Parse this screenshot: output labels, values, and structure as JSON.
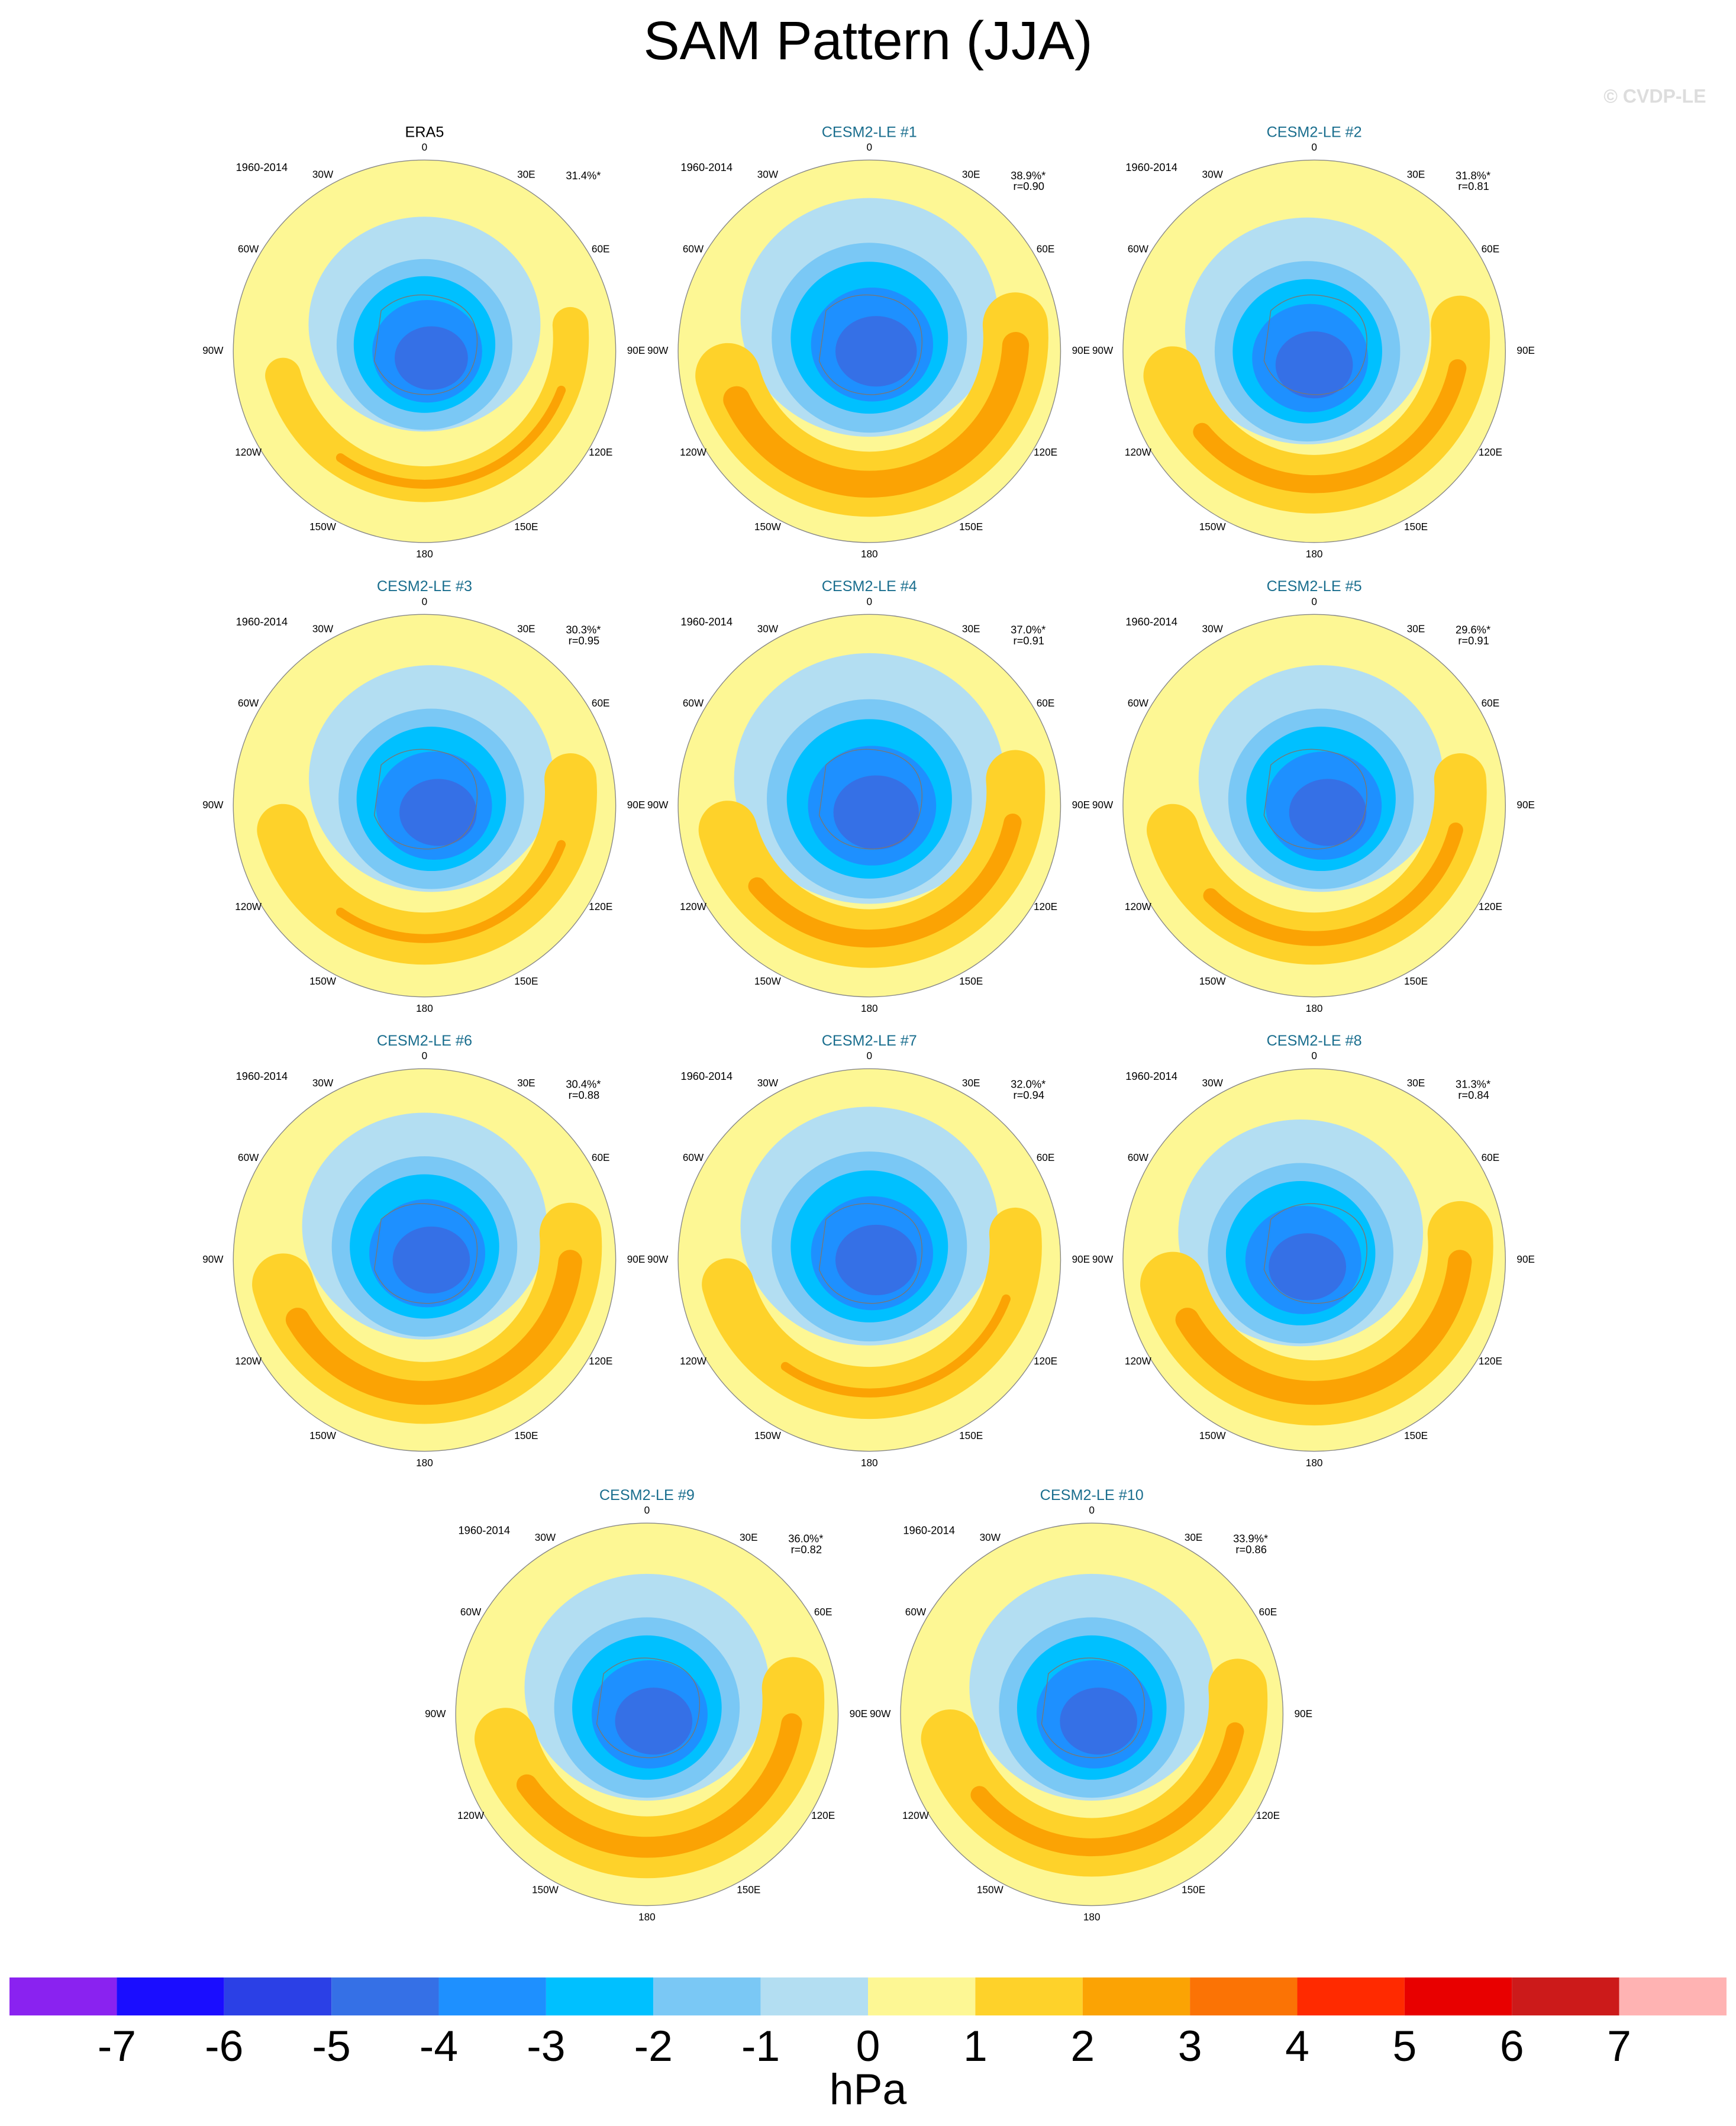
{
  "title": "SAM Pattern (JJA)",
  "watermark": "© CVDP-LE",
  "lon_labels": [
    "0",
    "30E",
    "60E",
    "90E",
    "120E",
    "150E",
    "180",
    "150W",
    "120W",
    "90W",
    "60W",
    "30W"
  ],
  "panels": [
    {
      "title": "ERA5",
      "years": "1960-2014",
      "pct": "31.4%*"
    },
    {
      "title": "CESM2-LE #1",
      "years": "1960-2014",
      "pct": "38.9%*",
      "r": "r=0.90"
    },
    {
      "title": "CESM2-LE #2",
      "years": "1960-2014",
      "pct": "31.8%*",
      "r": "r=0.81"
    },
    {
      "title": "CESM2-LE #3",
      "years": "1960-2014",
      "pct": "30.3%*",
      "r": "r=0.95"
    },
    {
      "title": "CESM2-LE #4",
      "years": "1960-2014",
      "pct": "37.0%*",
      "r": "r=0.91"
    },
    {
      "title": "CESM2-LE #5",
      "years": "1960-2014",
      "pct": "29.6%*",
      "r": "r=0.91"
    },
    {
      "title": "CESM2-LE #6",
      "years": "1960-2014",
      "pct": "30.4%*",
      "r": "r=0.88"
    },
    {
      "title": "CESM2-LE #7",
      "years": "1960-2014",
      "pct": "32.0%*",
      "r": "r=0.94"
    },
    {
      "title": "CESM2-LE #8",
      "years": "1960-2014",
      "pct": "31.3%*",
      "r": "r=0.84"
    },
    {
      "title": "CESM2-LE #9",
      "years": "1960-2014",
      "pct": "36.0%*",
      "r": "r=0.82"
    },
    {
      "title": "CESM2-LE #10",
      "years": "1960-2014",
      "pct": "33.9%*",
      "r": "r=0.86"
    }
  ],
  "colorbar": {
    "levels": [
      -7,
      -6,
      -5,
      -4,
      -3,
      -2,
      -1,
      0,
      1,
      2,
      3,
      4,
      5,
      6,
      7
    ],
    "colors": [
      "#8a22f0",
      "#1a0dff",
      "#2b40e6",
      "#3570e6",
      "#1e90ff",
      "#00c0ff",
      "#7ac8f5",
      "#b3def2",
      "#fdf794",
      "#fed22a",
      "#fba304",
      "#fb7305",
      "#ff2a00",
      "#e80000",
      "#cc1a1a",
      "#ffb3b3"
    ],
    "label": "hPa"
  }
}
